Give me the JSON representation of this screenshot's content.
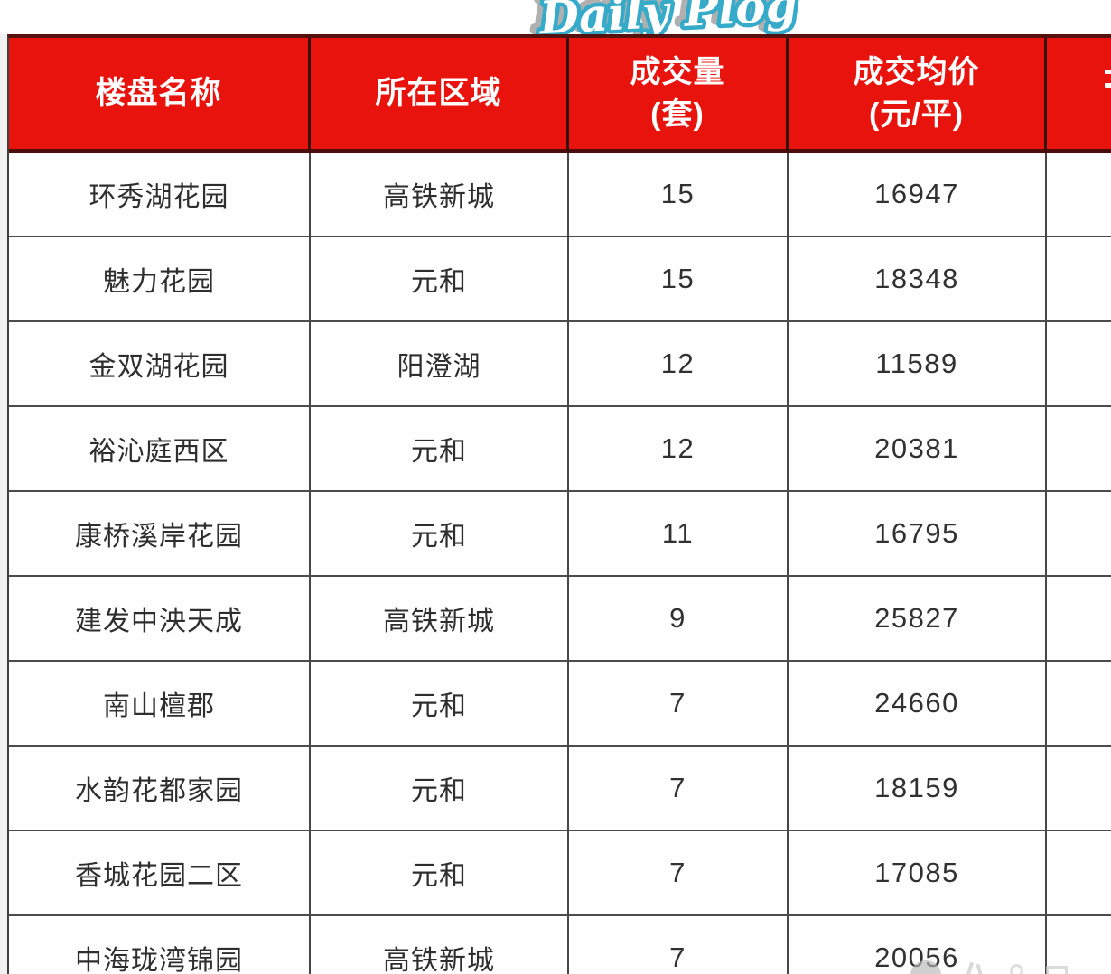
{
  "logo": {
    "text": "Daily Plog",
    "teal": "#35aac9",
    "shadow_gray": "#a3a3a3"
  },
  "colors": {
    "header_bg": "#e9130d",
    "header_text": "#ffffff",
    "grid_border": "#474747",
    "header_border": "#4d0e0b",
    "cell_text": "#2e2e2e"
  },
  "table": {
    "headers": {
      "col1": "楼盘名称",
      "col2": "所在区域",
      "col3": {
        "line1": "成交量",
        "line2": "(套)"
      },
      "col4": {
        "line1": "成交均价",
        "line2": "(元/平)"
      }
    },
    "rows": [
      {
        "name": "环秀湖花园",
        "district": "高铁新城",
        "volume": "15",
        "avg_price": "16947"
      },
      {
        "name": "魅力花园",
        "district": "元和",
        "volume": "15",
        "avg_price": "18348"
      },
      {
        "name": "金双湖花园",
        "district": "阳澄湖",
        "volume": "12",
        "avg_price": "11589"
      },
      {
        "name": "裕沁庭西区",
        "district": "元和",
        "volume": "12",
        "avg_price": "20381"
      },
      {
        "name": "康桥溪岸花园",
        "district": "元和",
        "volume": "11",
        "avg_price": "16795"
      },
      {
        "name": "建发中泱天成",
        "district": "高铁新城",
        "volume": "9",
        "avg_price": "25827"
      },
      {
        "name": "南山檀郡",
        "district": "元和",
        "volume": "7",
        "avg_price": "24660"
      },
      {
        "name": "水韵花都家园",
        "district": "元和",
        "volume": "7",
        "avg_price": "18159"
      },
      {
        "name": "香城花园二区",
        "district": "元和",
        "volume": "7",
        "avg_price": "17085"
      },
      {
        "name": "中海珑湾锦园",
        "district": "高铁新城",
        "volume": "7",
        "avg_price": "20056"
      }
    ]
  }
}
